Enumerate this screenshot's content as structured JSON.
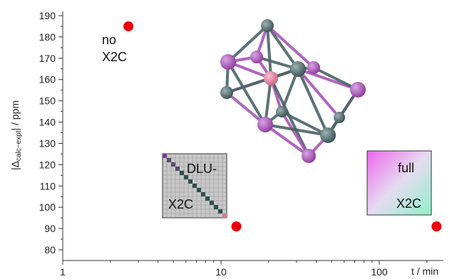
{
  "chart_data": {
    "type": "scatter",
    "title": "",
    "x_scale": "log",
    "xlim": [
      1,
      250
    ],
    "ylim": [
      75,
      192
    ],
    "x_ticks": [
      1,
      10,
      100
    ],
    "x_tick_labels": [
      "1",
      "10",
      "100"
    ],
    "x_label": "t / min",
    "y_ticks": [
      80,
      90,
      100,
      110,
      120,
      130,
      140,
      150,
      160,
      170,
      180,
      190
    ],
    "y_tick_labels": [
      "80",
      "90",
      "100",
      "110",
      "120",
      "130",
      "140",
      "150",
      "160",
      "170",
      "180",
      "190"
    ],
    "y_label_parts": [
      "|Δ",
      "calc−expt",
      "| / ppm"
    ],
    "grid": false,
    "marker_color": "#e8000b",
    "points": [
      {
        "x": 2.6,
        "y": 185,
        "label_lines": [
          "no",
          "X2C"
        ]
      },
      {
        "x": 12.5,
        "y": 91,
        "label_lines": [
          "DLU-",
          "X2C"
        ]
      },
      {
        "x": 230,
        "y": 91,
        "label_lines": [
          "full",
          "X2C"
        ]
      }
    ]
  },
  "colors": {
    "cluster_purple": "#a855b8",
    "cluster_slate": "#4b6365",
    "cluster_center": "#e88aa8",
    "matrix_bg": "#c8c8c8",
    "matrix_diag": "#2f4f4f"
  }
}
